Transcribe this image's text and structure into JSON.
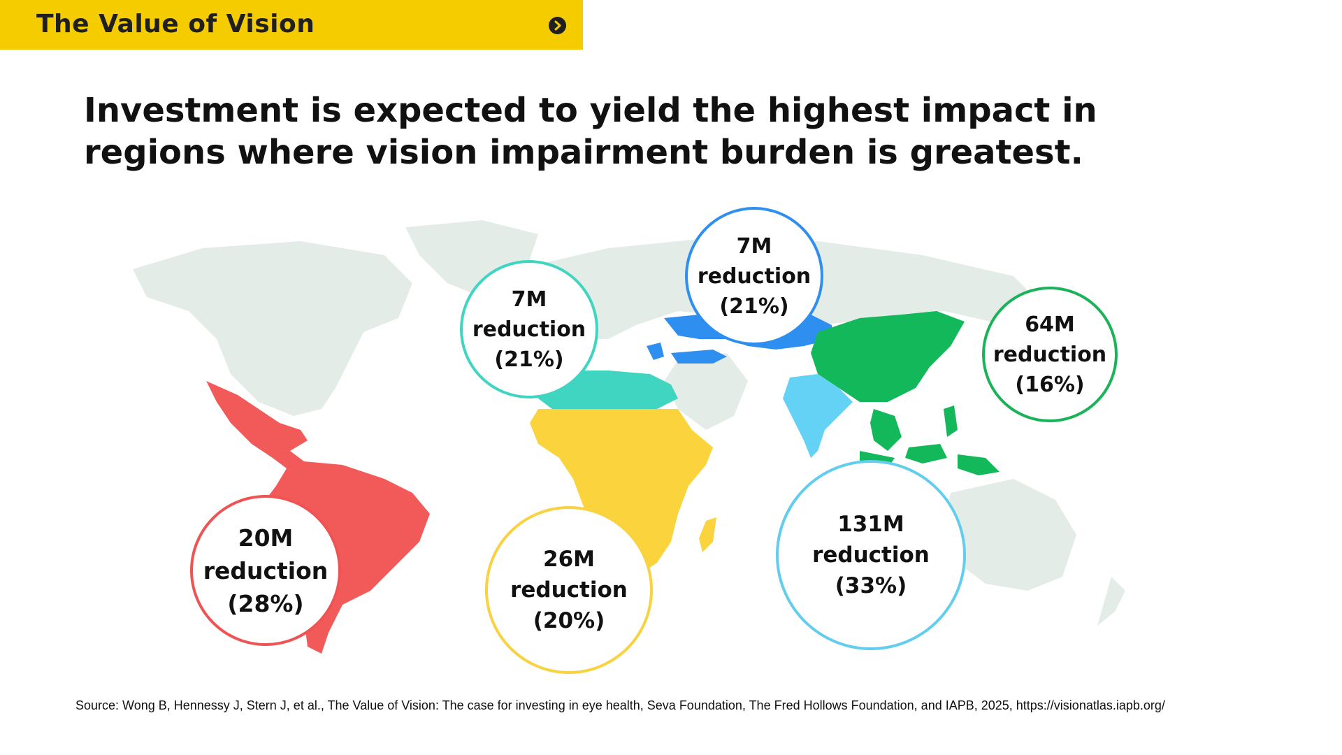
{
  "header": {
    "title": "The Value of Vision"
  },
  "headline": "Investment is expected to yield the highest impact in regions where vision impairment burden is greatest.",
  "colors": {
    "banner": "#f5cc00",
    "land": "#e4ece8",
    "americas": "#f25a5a",
    "north_africa": "#3fd5c0",
    "sub_saharan_africa": "#fbd33c",
    "central_asia_europe": "#2e8ff0",
    "east_southeast_asia": "#12b85a",
    "south_asia": "#63d2f5"
  },
  "regions": [
    {
      "name": "Latin America",
      "value": "20M",
      "label": "reduction",
      "percent": "(28%)",
      "color": "#ef5353"
    },
    {
      "name": "North Africa & Middle East",
      "value": "7M",
      "label": "reduction",
      "percent": "(21%)",
      "color": "#3fd5c0"
    },
    {
      "name": "Central Europe, Eastern Europe & Central Asia",
      "value": "7M",
      "label": "reduction",
      "percent": "(21%)",
      "color": "#2e8ff0"
    },
    {
      "name": "East & Southeast Asia",
      "value": "64M",
      "label": "reduction",
      "percent": "(16%)",
      "color": "#1bb35a"
    },
    {
      "name": "Sub-Saharan Africa",
      "value": "26M",
      "label": "reduction",
      "percent": "(20%)",
      "color": "#f8d240"
    },
    {
      "name": "South Asia",
      "value": "131M",
      "label": "reduction",
      "percent": "(33%)",
      "color": "#63cdee"
    }
  ],
  "source": "Source: Wong B, Hennessy J, Stern J, et al., The Value of Vision: The case for investing in eye health, Seva Foundation, The Fred Hollows Foundation, and IAPB, 2025, https://visionatlas.iapb.org/"
}
